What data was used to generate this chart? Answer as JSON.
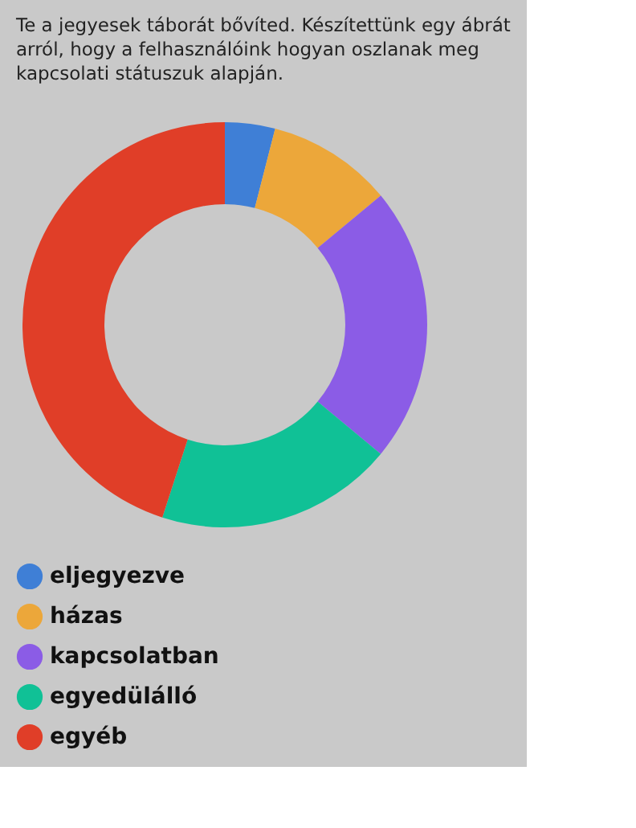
{
  "chart_data": {
    "type": "donut",
    "title": "Te a jegyesek táborát bővíted. Készítettünk egy ábrát arról, hogy a felhasználóink hogyan oszlanak meg kapcsolati státuszuk alapján.",
    "categories": [
      "eljegyezve",
      "házas",
      "kapcsolatban",
      "egyedülálló",
      "egyéb"
    ],
    "values": [
      4,
      10,
      22,
      19,
      45
    ],
    "colors": [
      "#3f7fd6",
      "#eca73a",
      "#8b5ce6",
      "#10c196",
      "#e03e28"
    ],
    "legend": "bottom"
  }
}
